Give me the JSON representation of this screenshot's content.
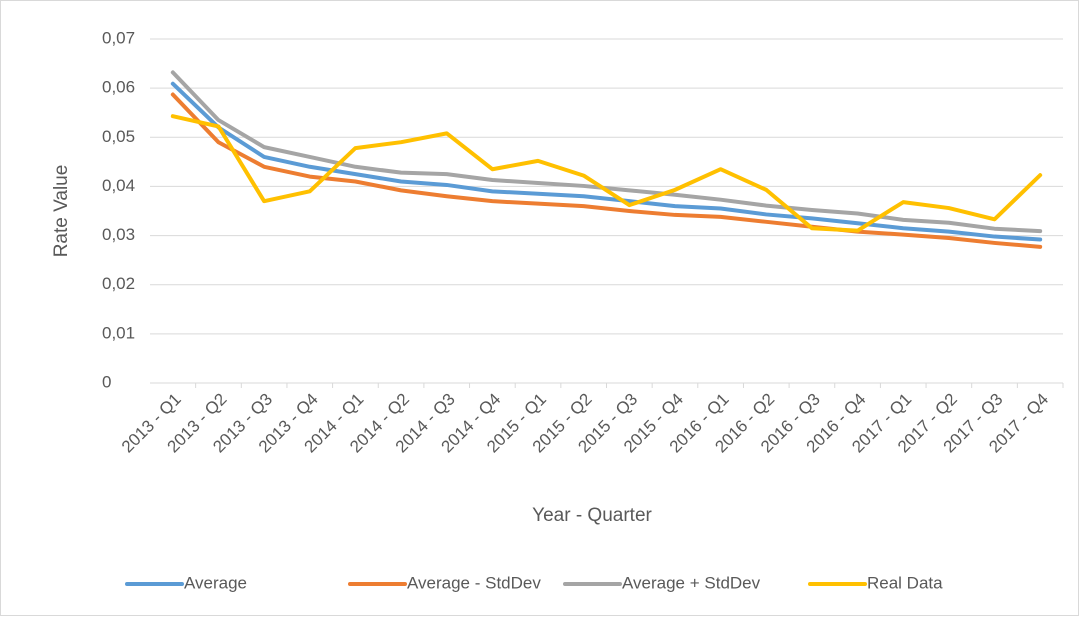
{
  "chart_data": {
    "type": "line",
    "x_label": "Year - Quarter",
    "y_label": "Rate Value",
    "categories": [
      "2013 - Q1",
      "2013 - Q2",
      "2013 - Q3",
      "2013 - Q4",
      "2014 - Q1",
      "2014 - Q2",
      "2014 - Q3",
      "2014 - Q4",
      "2015 - Q1",
      "2015 - Q2",
      "2015 - Q3",
      "2015 - Q4",
      "2016 - Q1",
      "2016 - Q2",
      "2016 - Q3",
      "2016 - Q4",
      "2017 - Q1",
      "2017 - Q2",
      "2017 - Q3",
      "2017 - Q4"
    ],
    "series": [
      {
        "name": "Average",
        "color": "#5b9bd5",
        "values": [
          0.0609,
          0.052,
          0.046,
          0.044,
          0.0425,
          0.041,
          0.0403,
          0.039,
          0.0385,
          0.038,
          0.037,
          0.036,
          0.0355,
          0.0343,
          0.0335,
          0.0325,
          0.0315,
          0.0308,
          0.0298,
          0.0292
        ]
      },
      {
        "name": "Average - StdDev",
        "color": "#ed7d31",
        "values": [
          0.0587,
          0.049,
          0.044,
          0.042,
          0.041,
          0.0392,
          0.038,
          0.037,
          0.0365,
          0.036,
          0.035,
          0.0342,
          0.0338,
          0.0328,
          0.0318,
          0.0308,
          0.0302,
          0.0295,
          0.0285,
          0.0277
        ]
      },
      {
        "name": "Average + StdDev",
        "color": "#a5a5a5",
        "values": [
          0.0632,
          0.0535,
          0.048,
          0.046,
          0.044,
          0.0428,
          0.0425,
          0.0413,
          0.0407,
          0.0401,
          0.0392,
          0.0383,
          0.0373,
          0.0361,
          0.0352,
          0.0345,
          0.0332,
          0.0326,
          0.0314,
          0.0309
        ]
      },
      {
        "name": "Real Data",
        "color": "#ffc000",
        "values": [
          0.0543,
          0.0522,
          0.037,
          0.039,
          0.0478,
          0.049,
          0.0508,
          0.0435,
          0.0452,
          0.0422,
          0.0362,
          0.0393,
          0.0435,
          0.0393,
          0.0315,
          0.031,
          0.0368,
          0.0356,
          0.0333,
          0.0423
        ]
      }
    ],
    "ylim": [
      0,
      0.07
    ],
    "yticks": [
      0,
      {
        "value": 0.01,
        "label": "0,01"
      },
      {
        "value": 0.02,
        "label": "0,02"
      },
      {
        "value": 0.03,
        "label": "0,03"
      },
      {
        "value": 0.04,
        "label": "0,04"
      },
      {
        "value": 0.05,
        "label": "0,05"
      },
      {
        "value": 0.06,
        "label": "0,06"
      },
      {
        "value": 0.07,
        "label": "0,07"
      }
    ],
    "grid": true,
    "legend": "bottom"
  }
}
